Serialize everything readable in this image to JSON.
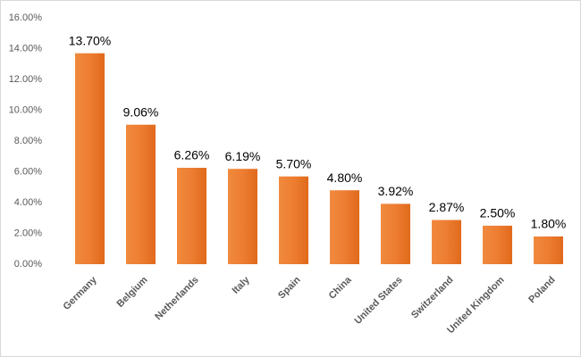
{
  "chart_data": {
    "type": "bar",
    "categories": [
      "Germany",
      "Belgium",
      "Netherlands",
      "Italy",
      "Spain",
      "China",
      "United States",
      "Switzerland",
      "United Kingdom",
      "Poland"
    ],
    "values": [
      13.7,
      9.06,
      6.26,
      6.19,
      5.7,
      4.8,
      3.92,
      2.87,
      2.5,
      1.8
    ],
    "value_labels": [
      "13.70%",
      "9.06%",
      "6.26%",
      "6.19%",
      "5.70%",
      "4.80%",
      "3.92%",
      "2.87%",
      "2.50%",
      "1.80%"
    ],
    "color": "#ed7d31",
    "ylim": [
      0,
      16
    ],
    "yticks": [
      {
        "value": 0,
        "label": "0.00%"
      },
      {
        "value": 2,
        "label": "2.00%"
      },
      {
        "value": 4,
        "label": "4.00%"
      },
      {
        "value": 6,
        "label": "6.00%"
      },
      {
        "value": 8,
        "label": "8.00%"
      },
      {
        "value": 10,
        "label": "10.00%"
      },
      {
        "value": 12,
        "label": "12.00%"
      },
      {
        "value": 14,
        "label": "14.00%"
      },
      {
        "value": 16,
        "label": "16.00%"
      }
    ],
    "grid": false
  }
}
